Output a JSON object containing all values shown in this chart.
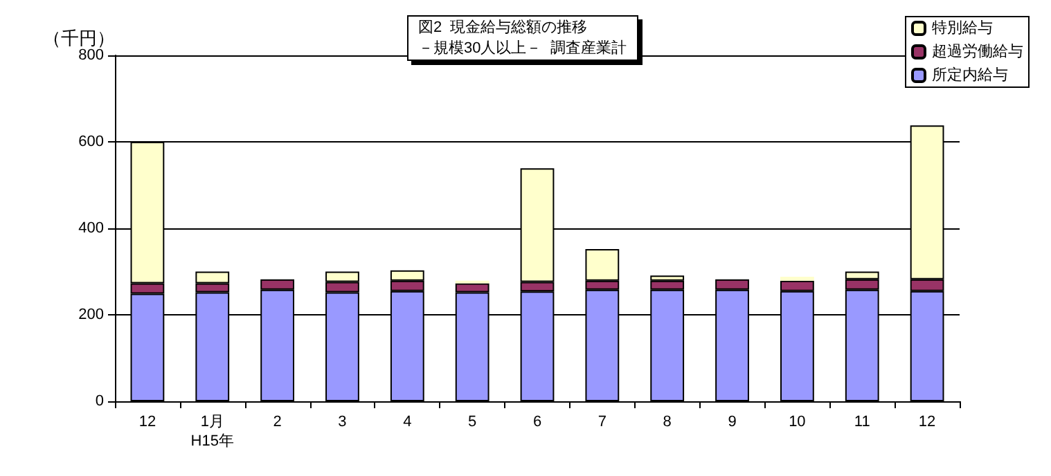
{
  "chart_data": {
    "type": "bar",
    "title": "図2  現金給与総額の推移",
    "subtitle": "－規模30人以上－  調査産業計",
    "ylabel": "（千円）",
    "categories": [
      "12",
      "1月\nH15年",
      "2",
      "3",
      "4",
      "5",
      "6",
      "7",
      "8",
      "9",
      "10",
      "11",
      "12"
    ],
    "stacked": true,
    "series": [
      {
        "name": "所定内給与",
        "color": "#9999ff",
        "values": [
          249,
          252,
          258,
          252,
          255,
          252,
          254,
          258,
          258,
          258,
          255,
          258,
          255
        ]
      },
      {
        "name": "超過労働給与",
        "color": "#993366",
        "values": [
          24,
          21,
          24,
          24,
          24,
          21,
          22,
          21,
          21,
          24,
          24,
          24,
          27
        ]
      },
      {
        "name": "特別給与",
        "color": "#ffffcc",
        "values": [
          327,
          27,
          null,
          24,
          24,
          6,
          263,
          73,
          12,
          null,
          9,
          18,
          356
        ]
      }
    ],
    "ylim": [
      0,
      800
    ],
    "yticks": [
      0,
      200,
      400,
      600,
      800
    ],
    "grid": "y",
    "legend": "top right"
  }
}
